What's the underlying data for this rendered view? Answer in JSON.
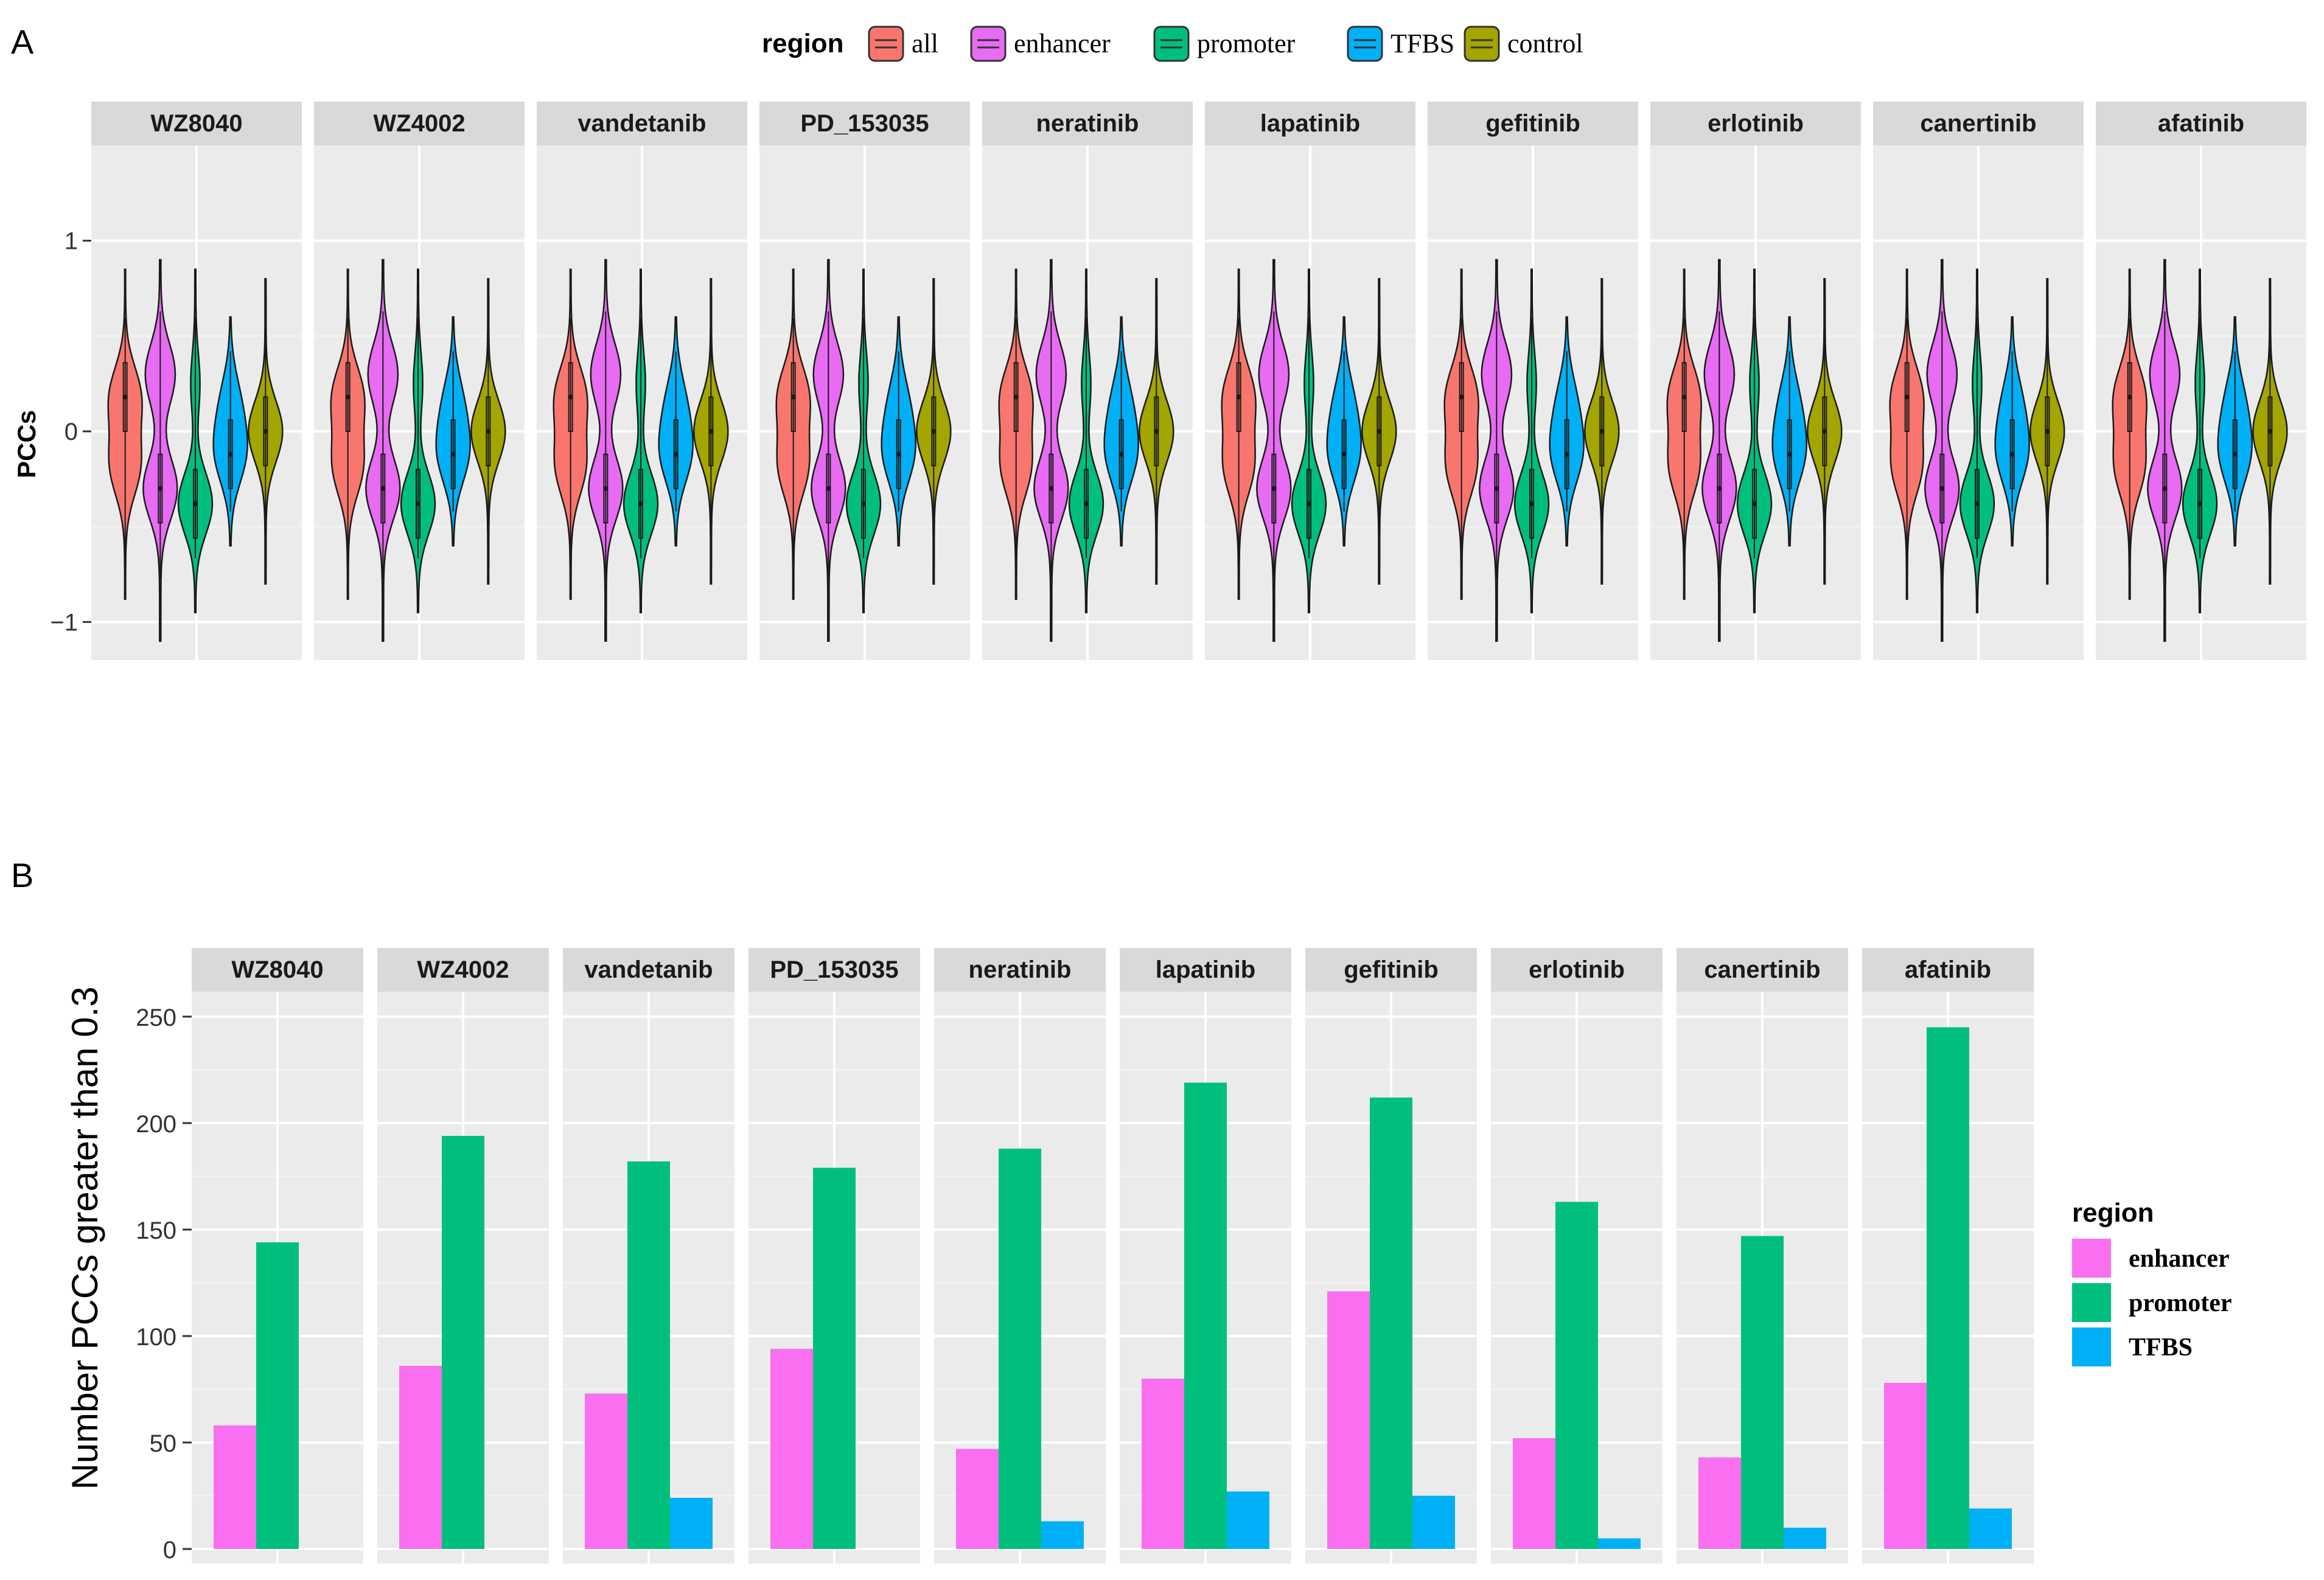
{
  "panel_a": {
    "letter": "A",
    "chart_data": {
      "type": "violin",
      "ylabel": "PCCs",
      "ylim": [
        -1.2,
        1.5
      ],
      "yticks": [
        "1",
        "0",
        "−1"
      ],
      "ytick_values": [
        1,
        0,
        -1
      ],
      "legend": {
        "title": "region",
        "placement": "top",
        "entries": [
          "all",
          "enhancer",
          "promoter",
          "TFBS",
          "control"
        ]
      },
      "colors": {
        "all": "#F8766D",
        "enhancer": "#E76BF3",
        "promoter": "#00BF7D",
        "TFBS": "#00B0F6",
        "control": "#A3A500"
      },
      "panels": [
        "WZ8040",
        "WZ4002",
        "vandetanib",
        "PD_153035",
        "neratinib",
        "lapatinib",
        "gefitinib",
        "erlotinib",
        "canertinib",
        "afatinib"
      ],
      "series": [
        {
          "name": "all",
          "modes": [
            [
              0.18,
              1.0
            ],
            [
              -0.18,
              0.95
            ]
          ],
          "range": [
            -0.88,
            0.85
          ]
        },
        {
          "name": "enhancer",
          "modes": [
            [
              -0.3,
              0.8
            ],
            [
              0.3,
              0.7
            ]
          ],
          "range": [
            -1.1,
            0.9
          ]
        },
        {
          "name": "promoter",
          "modes": [
            [
              -0.38,
              1.0
            ],
            [
              0.25,
              0.25
            ]
          ],
          "range": [
            -0.95,
            0.85
          ]
        },
        {
          "name": "TFBS",
          "modes": [
            [
              -0.12,
              1.0
            ],
            [
              0.15,
              0.6
            ]
          ],
          "range": [
            -0.6,
            0.6
          ]
        },
        {
          "name": "control",
          "modes": [
            [
              0.0,
              1.0
            ]
          ],
          "range": [
            -0.8,
            0.8
          ]
        }
      ]
    }
  },
  "panel_b": {
    "letter": "B",
    "chart_data": {
      "type": "bar",
      "ylabel": "Number PCCs greater than 0.3",
      "ylim": [
        0,
        260
      ],
      "yticks": [
        "0",
        "50",
        "100",
        "150",
        "200",
        "250"
      ],
      "ytick_values": [
        0,
        50,
        100,
        150,
        200,
        250
      ],
      "legend": {
        "title": "region",
        "placement": "right",
        "entries": [
          "enhancer",
          "promoter",
          "TFBS"
        ]
      },
      "colors": {
        "enhancer": "#F96FF0",
        "promoter": "#00BF7D",
        "TFBS": "#00B0F6"
      },
      "panels": [
        "WZ8040",
        "WZ4002",
        "vandetanib",
        "PD_153035",
        "neratinib",
        "lapatinib",
        "gefitinib",
        "erlotinib",
        "canertinib",
        "afatinib"
      ],
      "series": [
        {
          "name": "enhancer",
          "values": [
            58,
            86,
            73,
            94,
            47,
            80,
            121,
            52,
            43,
            78
          ]
        },
        {
          "name": "promoter",
          "values": [
            144,
            194,
            182,
            179,
            188,
            219,
            212,
            163,
            147,
            245
          ]
        },
        {
          "name": "TFBS",
          "values": [
            0,
            0,
            24,
            0,
            13,
            27,
            25,
            5,
            10,
            19
          ]
        }
      ]
    }
  }
}
